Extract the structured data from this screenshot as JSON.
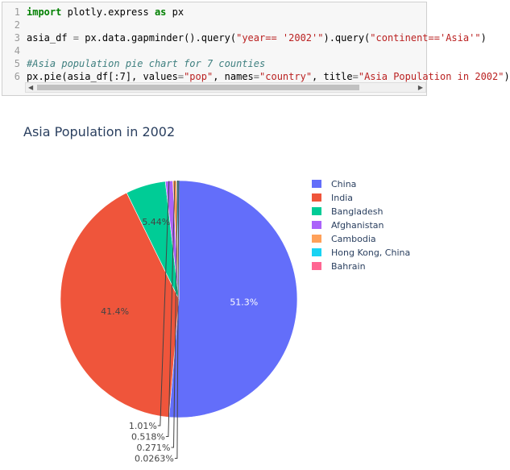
{
  "code_cell": {
    "lines": [
      {
        "num": "1",
        "tokens": [
          {
            "t": "import",
            "c": "kw"
          },
          {
            "t": " plotly.express ",
            "c": ""
          },
          {
            "t": "as",
            "c": "kw"
          },
          {
            "t": " px",
            "c": ""
          }
        ]
      },
      {
        "num": "2",
        "tokens": []
      },
      {
        "num": "3",
        "tokens": [
          {
            "t": "asia_df ",
            "c": ""
          },
          {
            "t": "=",
            "c": "op"
          },
          {
            "t": " px.data.gapminder().query(",
            "c": ""
          },
          {
            "t": "\"year== '2002'\"",
            "c": "str"
          },
          {
            "t": ").query(",
            "c": ""
          },
          {
            "t": "\"continent=='Asia'\"",
            "c": "str"
          },
          {
            "t": ")",
            "c": ""
          }
        ]
      },
      {
        "num": "4",
        "tokens": []
      },
      {
        "num": "5",
        "tokens": [
          {
            "t": "#Asia population pie chart for 7 counties",
            "c": "cm"
          }
        ]
      },
      {
        "num": "6",
        "tokens": [
          {
            "t": "px.pie(asia_df[:7], values",
            "c": ""
          },
          {
            "t": "=",
            "c": "op"
          },
          {
            "t": "\"pop\"",
            "c": "str"
          },
          {
            "t": ", names",
            "c": ""
          },
          {
            "t": "=",
            "c": "op"
          },
          {
            "t": "\"country\"",
            "c": "str"
          },
          {
            "t": ", title",
            "c": ""
          },
          {
            "t": "=",
            "c": "op"
          },
          {
            "t": "\"Asia Population in 2002\"",
            "c": "str"
          },
          {
            "t": ")",
            "c": ""
          }
        ]
      }
    ],
    "scroll_left_icon": "◀",
    "scroll_right_icon": "▶"
  },
  "chart_data": {
    "type": "pie",
    "title": "Asia Population in 2002",
    "labels": [
      "China",
      "India",
      "Bangladesh",
      "Afghanistan",
      "Cambodia",
      "Hong Kong, China",
      "Bahrain"
    ],
    "values": [
      51.3,
      41.4,
      5.44,
      1.01,
      0.518,
      0.271,
      0.0263
    ],
    "text": [
      "51.3%",
      "41.4%",
      "5.44%",
      "1.01%",
      "0.518%",
      "0.271%",
      "0.0263%"
    ],
    "colors": [
      "#636efa",
      "#EF553B",
      "#00cc96",
      "#ab63fa",
      "#FFA15A",
      "#19d3f3",
      "#FF6692"
    ],
    "legend_position": "right",
    "direction": "clockwise",
    "start_angle_deg": 90
  }
}
